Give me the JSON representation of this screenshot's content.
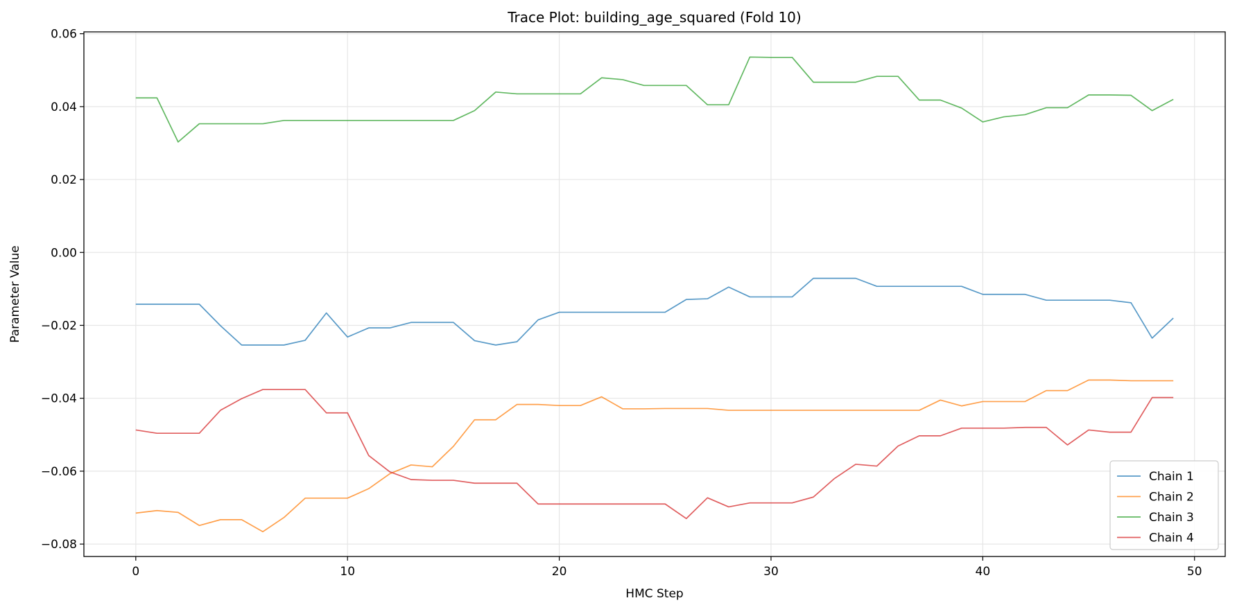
{
  "chart_data": {
    "type": "line",
    "title": "Trace Plot: building_age_squared (Fold 10)",
    "xlabel": "HMC Step",
    "ylabel": "Parameter Value",
    "xlim": [
      -2.45,
      51.45
    ],
    "ylim": [
      -0.0834,
      0.0605
    ],
    "xticks": [
      0,
      10,
      20,
      30,
      40,
      50
    ],
    "xtick_labels": [
      "0",
      "10",
      "20",
      "30",
      "40",
      "50"
    ],
    "yticks": [
      -0.08,
      -0.06,
      -0.04,
      -0.02,
      0.0,
      0.02,
      0.04,
      0.06
    ],
    "ytick_labels": [
      "−0.08",
      "−0.06",
      "−0.04",
      "−0.02",
      "0.00",
      "0.02",
      "0.04",
      "0.06"
    ],
    "grid": true,
    "legend_position": "bottom-right",
    "x": [
      0,
      1,
      2,
      3,
      4,
      5,
      6,
      7,
      8,
      9,
      10,
      11,
      12,
      13,
      14,
      15,
      16,
      17,
      18,
      19,
      20,
      21,
      22,
      23,
      24,
      25,
      26,
      27,
      28,
      29,
      30,
      31,
      32,
      33,
      34,
      35,
      36,
      37,
      38,
      39,
      40,
      41,
      42,
      43,
      44,
      45,
      46,
      47,
      48,
      49
    ],
    "series": [
      {
        "name": "Chain 1",
        "color": "#1f77b4",
        "values": [
          -0.0142,
          -0.0142,
          -0.0142,
          -0.0142,
          -0.0201,
          -0.0254,
          -0.0254,
          -0.0254,
          -0.0241,
          -0.0166,
          -0.0232,
          -0.0207,
          -0.0207,
          -0.0192,
          -0.0192,
          -0.0192,
          -0.0242,
          -0.0254,
          -0.0245,
          -0.0185,
          -0.0164,
          -0.0164,
          -0.0164,
          -0.0164,
          -0.0164,
          -0.0164,
          -0.0129,
          -0.0127,
          -0.0095,
          -0.0122,
          -0.0122,
          -0.0122,
          -0.0071,
          -0.0071,
          -0.0071,
          -0.0093,
          -0.0093,
          -0.0093,
          -0.0093,
          -0.0093,
          -0.0115,
          -0.0115,
          -0.0115,
          -0.0131,
          -0.0131,
          -0.0131,
          -0.0131,
          -0.0138,
          -0.0235,
          -0.018
        ]
      },
      {
        "name": "Chain 2",
        "color": "#ff7f0e",
        "values": [
          -0.0715,
          -0.0708,
          -0.0713,
          -0.0749,
          -0.0733,
          -0.0733,
          -0.0766,
          -0.0727,
          -0.0674,
          -0.0674,
          -0.0674,
          -0.0648,
          -0.0607,
          -0.0583,
          -0.0588,
          -0.0532,
          -0.0459,
          -0.0459,
          -0.0417,
          -0.0417,
          -0.042,
          -0.042,
          -0.0396,
          -0.0429,
          -0.0429,
          -0.0428,
          -0.0428,
          -0.0428,
          -0.0433,
          -0.0433,
          -0.0433,
          -0.0433,
          -0.0433,
          -0.0433,
          -0.0433,
          -0.0433,
          -0.0433,
          -0.0433,
          -0.0405,
          -0.0421,
          -0.0409,
          -0.0409,
          -0.0409,
          -0.0379,
          -0.0379,
          -0.035,
          -0.035,
          -0.0352,
          -0.0352,
          -0.0352
        ]
      },
      {
        "name": "Chain 3",
        "color": "#2ca02c",
        "values": [
          0.0424,
          0.0424,
          0.0303,
          0.0353,
          0.0353,
          0.0353,
          0.0353,
          0.0362,
          0.0362,
          0.0362,
          0.0362,
          0.0362,
          0.0362,
          0.0362,
          0.0362,
          0.0362,
          0.0389,
          0.044,
          0.0435,
          0.0435,
          0.0435,
          0.0435,
          0.0479,
          0.0474,
          0.0458,
          0.0458,
          0.0458,
          0.0405,
          0.0405,
          0.0536,
          0.0535,
          0.0535,
          0.0467,
          0.0467,
          0.0467,
          0.0483,
          0.0483,
          0.0418,
          0.0418,
          0.0396,
          0.0358,
          0.0372,
          0.0378,
          0.0397,
          0.0397,
          0.0432,
          0.0432,
          0.0431,
          0.0389,
          0.042
        ]
      },
      {
        "name": "Chain 4",
        "color": "#d62728",
        "values": [
          -0.0487,
          -0.0496,
          -0.0496,
          -0.0496,
          -0.0433,
          -0.0401,
          -0.0376,
          -0.0376,
          -0.0376,
          -0.044,
          -0.044,
          -0.0557,
          -0.0602,
          -0.0623,
          -0.0625,
          -0.0625,
          -0.0633,
          -0.0633,
          -0.0633,
          -0.069,
          -0.069,
          -0.069,
          -0.069,
          -0.069,
          -0.069,
          -0.069,
          -0.073,
          -0.0673,
          -0.0698,
          -0.0687,
          -0.0687,
          -0.0687,
          -0.0671,
          -0.062,
          -0.0581,
          -0.0586,
          -0.0531,
          -0.0503,
          -0.0503,
          -0.0482,
          -0.0482,
          -0.0482,
          -0.048,
          -0.048,
          -0.0528,
          -0.0487,
          -0.0493,
          -0.0493,
          -0.0398,
          -0.0398
        ]
      }
    ]
  }
}
